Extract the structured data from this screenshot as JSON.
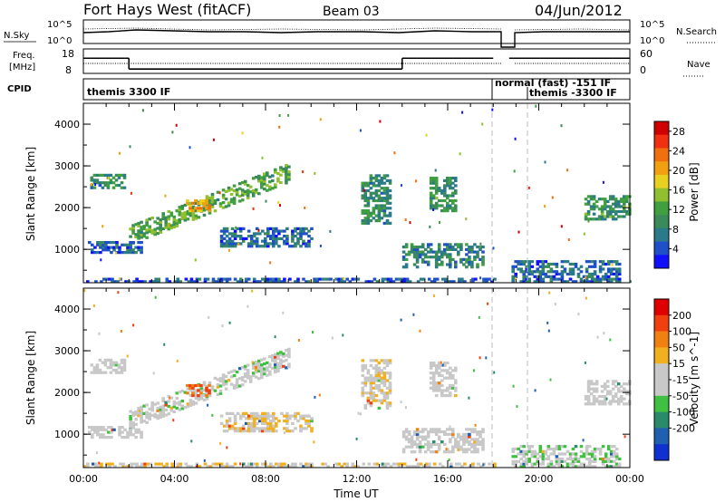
{
  "header": {
    "title": "Fort Hays West (fitACF)",
    "beam": "Beam 03",
    "date": "04/Jun/2012"
  },
  "summary": {
    "nsky_label": "N.Sky",
    "nsearch_label": "N.Search",
    "freq_label_line1": "Freq.",
    "freq_label_line2": "[MHz]",
    "nave_label": "Nave",
    "cpid_label": "CPID",
    "left_axis_ticks": [
      "10^5",
      "10^0"
    ],
    "right_axis_ticks": [
      "10^5",
      "10^0"
    ],
    "freq_ticks": [
      "18",
      "8"
    ],
    "nave_ticks": [
      "60",
      "0"
    ],
    "freq_level_mhz": [
      {
        "t_start": 0.0,
        "t_end": 2.0,
        "value": 14.2
      },
      {
        "t_start": 2.0,
        "t_end": 14.0,
        "value": 9.8
      },
      {
        "t_start": 14.0,
        "t_end": 18.0,
        "value": 14.2
      },
      {
        "t_start": 18.7,
        "t_end": 24.0,
        "value": 14.2
      }
    ],
    "data_gap_hours": [
      18.0,
      18.7
    ],
    "cpid_segments": [
      {
        "t_start": 0.0,
        "label": "themis 3300 IF"
      },
      {
        "t_start": 18.0,
        "label": "normal (fast) -151 IF"
      },
      {
        "t_start": 19.5,
        "label": "themis -3300 IF"
      }
    ]
  },
  "chart_data": [
    {
      "type": "heatmap",
      "name": "power-panel",
      "xlabel": "",
      "ylabel": "Slant Range [km]",
      "xlim": [
        0,
        24
      ],
      "ylim": [
        200,
        4500
      ],
      "yticks": [
        "1000",
        "2000",
        "3000",
        "4000"
      ],
      "colorbar": {
        "label": "Power [dB]",
        "range": [
          0,
          30
        ],
        "ticks": [
          "4",
          "8",
          "12",
          "16",
          "20",
          "24",
          "28"
        ],
        "tick_values": [
          4,
          8,
          12,
          16,
          20,
          24,
          28
        ],
        "colors": [
          "#1010ff",
          "#2050c8",
          "#2a7a8a",
          "#3a8a5a",
          "#40a040",
          "#90c030",
          "#e8d020",
          "#f0a010",
          "#f07010",
          "#f03010",
          "#d00000"
        ]
      },
      "echo_regions": [
        {
          "t0": 0.3,
          "t1": 1.8,
          "r0": 2450,
          "r1": 2800,
          "value": 9
        },
        {
          "t0": 2.0,
          "t1": 9.0,
          "r0": 1350,
          "r1": 2850,
          "value": 12
        },
        {
          "t0": 4.5,
          "t1": 5.5,
          "r0": 1900,
          "r1": 2200,
          "value": 20
        },
        {
          "t0": 0.2,
          "t1": 2.5,
          "r0": 900,
          "r1": 1200,
          "value": 6
        },
        {
          "t0": 6.0,
          "t1": 10.0,
          "r0": 1050,
          "r1": 1500,
          "value": 6
        },
        {
          "t0": 12.2,
          "t1": 13.5,
          "r0": 1600,
          "r1": 2800,
          "value": 9
        },
        {
          "t0": 14.0,
          "t1": 17.5,
          "r0": 550,
          "r1": 1150,
          "value": 8
        },
        {
          "t0": 15.2,
          "t1": 16.3,
          "r0": 1900,
          "r1": 2700,
          "value": 10
        },
        {
          "t0": 18.8,
          "t1": 23.5,
          "r0": 200,
          "r1": 700,
          "value": 6
        },
        {
          "t0": 22.0,
          "t1": 24.0,
          "r0": 1700,
          "r1": 2300,
          "value": 10
        },
        {
          "t0": 0.0,
          "t1": 18.0,
          "r0": 200,
          "r1": 320,
          "value": 5
        }
      ]
    },
    {
      "type": "heatmap",
      "name": "velocity-panel",
      "xlabel": "Time UT",
      "ylabel": "Slant Range [km]",
      "xlim": [
        0,
        24
      ],
      "ylim": [
        200,
        4500
      ],
      "xticks": [
        "00:00",
        "04:00",
        "08:00",
        "12:00",
        "16:00",
        "20:00",
        "00:00"
      ],
      "yticks": [
        "1000",
        "2000",
        "3000",
        "4000"
      ],
      "colorbar": {
        "label": "Velocity [m s^-1]",
        "range": [
          -250,
          250
        ],
        "ticks": [
          "200",
          "100",
          "50",
          "15",
          "-15",
          "-50",
          "-100",
          "-200"
        ],
        "colors": [
          "#1030d0",
          "#2060b0",
          "#2a8a6a",
          "#40c040",
          "#c8c8c8",
          "#c8c8c8",
          "#f0b020",
          "#f08010",
          "#f04010",
          "#e00000"
        ]
      },
      "echo_regions": [
        {
          "t0": 0.3,
          "t1": 1.8,
          "r0": 2450,
          "r1": 2800,
          "value": 0
        },
        {
          "t0": 2.0,
          "t1": 9.0,
          "r0": 1350,
          "r1": 2850,
          "value": -30
        },
        {
          "t0": 4.5,
          "t1": 5.5,
          "r0": 1900,
          "r1": 2200,
          "value": 150
        },
        {
          "t0": 0.2,
          "t1": 2.5,
          "r0": 900,
          "r1": 1200,
          "value": 0
        },
        {
          "t0": 6.0,
          "t1": 10.0,
          "r0": 1050,
          "r1": 1500,
          "value": 40
        },
        {
          "t0": 12.2,
          "t1": 13.5,
          "r0": 1600,
          "r1": 2800,
          "value": 30
        },
        {
          "t0": 14.0,
          "t1": 17.5,
          "r0": 550,
          "r1": 1150,
          "value": -20
        },
        {
          "t0": 15.2,
          "t1": 16.3,
          "r0": 1900,
          "r1": 2700,
          "value": 20
        },
        {
          "t0": 18.8,
          "t1": 23.5,
          "r0": 200,
          "r1": 700,
          "value": -40
        },
        {
          "t0": 22.0,
          "t1": 24.0,
          "r0": 1700,
          "r1": 2300,
          "value": 0
        },
        {
          "t0": 0.0,
          "t1": 18.0,
          "r0": 200,
          "r1": 320,
          "value": 40
        }
      ]
    }
  ]
}
